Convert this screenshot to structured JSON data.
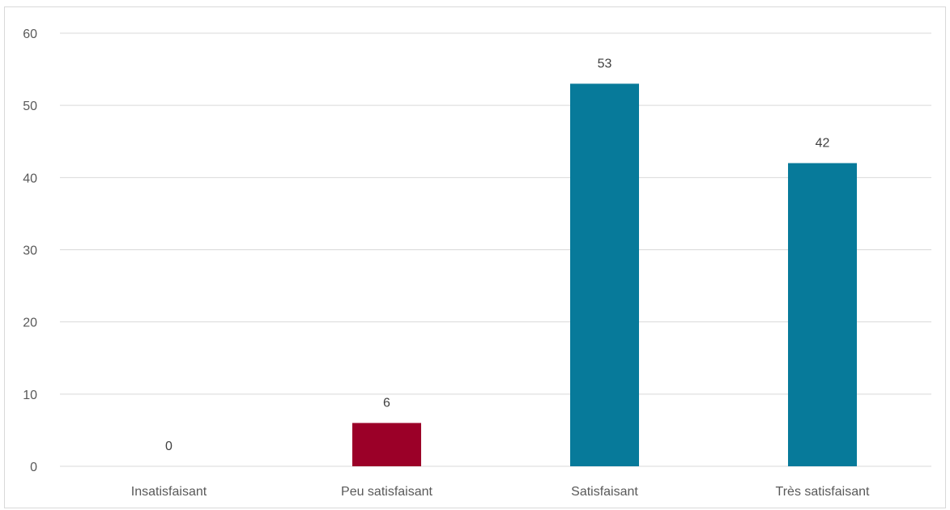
{
  "chart_data": {
    "type": "bar",
    "title": "",
    "xlabel": "",
    "ylabel": "",
    "categories": [
      "Insatisfaisant",
      "Peu satisfaisant",
      "Satisfaisant",
      "Très satisfaisant"
    ],
    "values": [
      0,
      6,
      53,
      42
    ],
    "colors": [
      "#077a9a",
      "#9b0028",
      "#077a9a",
      "#077a9a"
    ],
    "ylim": [
      0,
      60
    ],
    "yticks": [
      0,
      10,
      20,
      30,
      40,
      50,
      60
    ],
    "grid": true,
    "legend": "none",
    "data_labels": true
  }
}
